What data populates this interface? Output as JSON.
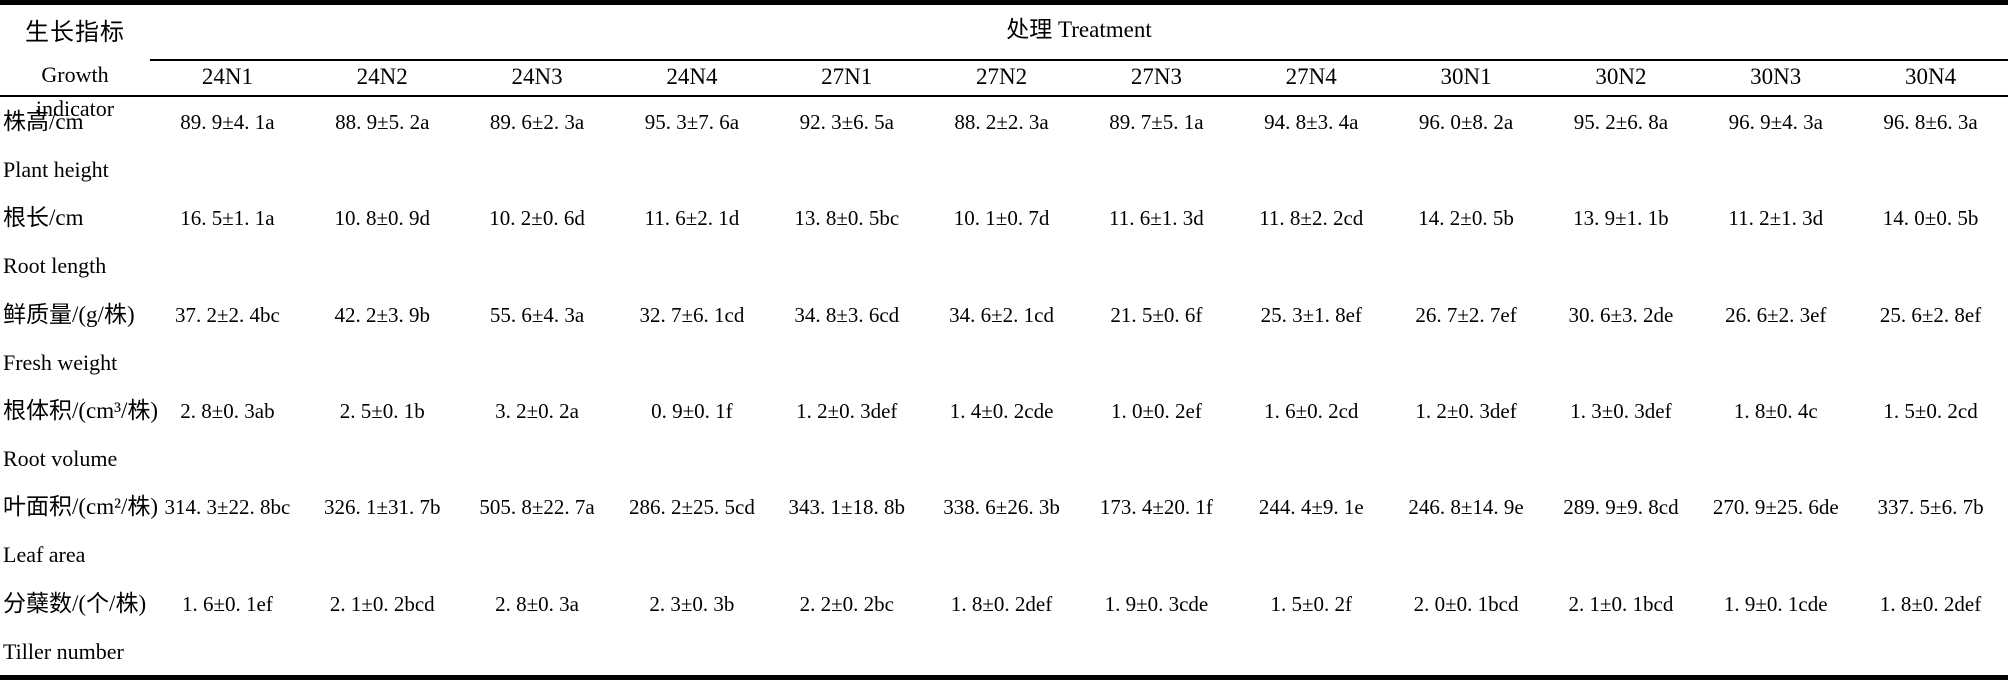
{
  "colors": {
    "text": "#000000",
    "background": "#ffffff",
    "rule": "#000000"
  },
  "table": {
    "indicator_header_zh": "生长指标",
    "indicator_header_en": "Growth indicator",
    "treatment_header": "处理 Treatment",
    "columns": [
      "24N1",
      "24N2",
      "24N3",
      "24N4",
      "27N1",
      "27N2",
      "27N3",
      "27N4",
      "30N1",
      "30N2",
      "30N3",
      "30N4"
    ],
    "rows": [
      {
        "zh": "株高/cm",
        "en": "Plant height",
        "values": [
          "89. 9±4. 1a",
          "88. 9±5. 2a",
          "89. 6±2. 3a",
          "95. 3±7. 6a",
          "92. 3±6. 5a",
          "88. 2±2. 3a",
          "89. 7±5. 1a",
          "94. 8±3. 4a",
          "96. 0±8. 2a",
          "95. 2±6. 8a",
          "96. 9±4. 3a",
          "96. 8±6. 3a"
        ]
      },
      {
        "zh": "根长/cm",
        "en": "Root length",
        "values": [
          "16. 5±1. 1a",
          "10. 8±0. 9d",
          "10. 2±0. 6d",
          "11. 6±2. 1d",
          "13. 8±0. 5bc",
          "10. 1±0. 7d",
          "11. 6±1. 3d",
          "11. 8±2. 2cd",
          "14. 2±0. 5b",
          "13. 9±1. 1b",
          "11. 2±1. 3d",
          "14. 0±0. 5b"
        ]
      },
      {
        "zh": "鲜质量/(g/株)",
        "en": "Fresh weight",
        "values": [
          "37. 2±2. 4bc",
          "42. 2±3. 9b",
          "55. 6±4. 3a",
          "32. 7±6. 1cd",
          "34. 8±3. 6cd",
          "34. 6±2. 1cd",
          "21. 5±0. 6f",
          "25. 3±1. 8ef",
          "26. 7±2. 7ef",
          "30. 6±3. 2de",
          "26. 6±2. 3ef",
          "25. 6±2. 8ef"
        ]
      },
      {
        "zh": "根体积/(cm³/株)",
        "en": "Root volume",
        "values": [
          "2. 8±0. 3ab",
          "2. 5±0. 1b",
          "3. 2±0. 2a",
          "0. 9±0. 1f",
          "1. 2±0. 3def",
          "1. 4±0. 2cde",
          "1. 0±0. 2ef",
          "1. 6±0. 2cd",
          "1. 2±0. 3def",
          "1. 3±0. 3def",
          "1. 8±0. 4c",
          "1. 5±0. 2cd"
        ]
      },
      {
        "zh": "叶面积/(cm²/株)",
        "en": "Leaf area",
        "values": [
          "314. 3±22. 8bc",
          "326. 1±31. 7b",
          "505. 8±22. 7a",
          "286. 2±25. 5cd",
          "343. 1±18. 8b",
          "338. 6±26. 3b",
          "173. 4±20. 1f",
          "244. 4±9. 1e",
          "246. 8±14. 9e",
          "289. 9±9. 8cd",
          "270. 9±25. 6de",
          "337. 5±6. 7b"
        ]
      },
      {
        "zh": "分蘖数/(个/株)",
        "en": "Tiller number",
        "values": [
          "1. 6±0. 1ef",
          "2. 1±0. 2bcd",
          "2. 8±0. 3a",
          "2. 3±0. 3b",
          "2. 2±0. 2bc",
          "1. 8±0. 2def",
          "1. 9±0. 3cde",
          "1. 5±0. 2f",
          "2. 0±0. 1bcd",
          "2. 1±0. 1bcd",
          "1. 9±0. 1cde",
          "1. 8±0. 2def"
        ]
      }
    ]
  }
}
